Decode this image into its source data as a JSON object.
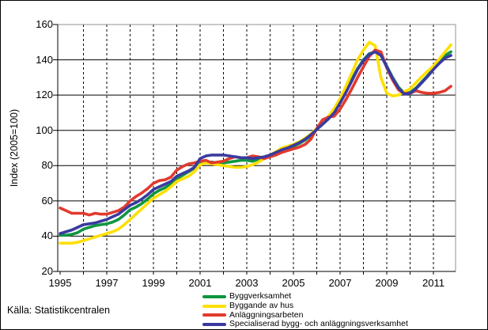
{
  "figure": {
    "source_text": "Källa: Statistikcentralen"
  },
  "chart_data": {
    "type": "line",
    "title": "",
    "xlabel": "",
    "ylabel": "Index (2005=100)",
    "ylim": [
      20,
      160
    ],
    "xlim": [
      1995,
      2012
    ],
    "y_ticks": [
      20,
      40,
      60,
      80,
      100,
      120,
      140,
      160
    ],
    "x_tick_label_years": [
      1995,
      1997,
      1999,
      2001,
      2003,
      2005,
      2007,
      2009,
      2011
    ],
    "x_tick_labels": [
      "1995",
      "1997",
      "1999",
      "2001",
      "2003",
      "2005",
      "2007",
      "2009",
      "2011"
    ],
    "grid": {
      "horizontal": "solid",
      "vertical": "dashed, one line per year"
    },
    "legend_position": "bottom",
    "x_start": 1995.0,
    "x_step_years": 0.25,
    "x": [
      1995.0,
      1995.25,
      1995.5,
      1995.75,
      1996.0,
      1996.25,
      1996.5,
      1996.75,
      1997.0,
      1997.25,
      1997.5,
      1997.75,
      1998.0,
      1998.25,
      1998.5,
      1998.75,
      1999.0,
      1999.25,
      1999.5,
      1999.75,
      2000.0,
      2000.25,
      2000.5,
      2000.75,
      2001.0,
      2001.25,
      2001.5,
      2001.75,
      2002.0,
      2002.25,
      2002.5,
      2002.75,
      2003.0,
      2003.25,
      2003.5,
      2003.75,
      2004.0,
      2004.25,
      2004.5,
      2004.75,
      2005.0,
      2005.25,
      2005.5,
      2005.75,
      2006.0,
      2006.25,
      2006.5,
      2006.75,
      2007.0,
      2007.25,
      2007.5,
      2007.75,
      2008.0,
      2008.25,
      2008.5,
      2008.75,
      2009.0,
      2009.25,
      2009.5,
      2009.75,
      2010.0,
      2010.25,
      2010.5,
      2010.75,
      2011.0,
      2011.25,
      2011.5,
      2011.75
    ],
    "series": [
      {
        "name": "Byggverksamhet",
        "color": "#0f9640",
        "values": [
          40.5,
          40.5,
          41,
          42,
          44,
          45,
          46,
          46.5,
          47,
          48,
          49.5,
          52,
          55,
          56.5,
          58.5,
          61,
          64,
          66,
          67.5,
          69.5,
          72.5,
          74.5,
          76.5,
          78.5,
          81,
          82,
          82,
          81.5,
          81.5,
          82,
          82.5,
          83,
          83,
          82.5,
          83.5,
          84.5,
          85.5,
          87,
          88.5,
          89.5,
          91,
          92.5,
          94.5,
          97,
          100.5,
          103.5,
          106.5,
          110.5,
          116,
          122.5,
          129,
          135,
          140,
          143.5,
          144.5,
          142.5,
          136.5,
          130,
          124.5,
          121,
          121.5,
          124,
          127.5,
          131,
          135,
          139,
          142.5,
          144.5
        ]
      },
      {
        "name": "Byggande av hus",
        "color": "#ffdf00",
        "values": [
          36,
          36,
          36,
          36.5,
          37.5,
          38.5,
          39.5,
          40.5,
          41.5,
          42.5,
          44,
          46.5,
          49.5,
          52.5,
          55.5,
          58.5,
          61.5,
          63.5,
          65.5,
          68,
          71,
          72.5,
          74,
          76.5,
          80.5,
          81.5,
          81,
          80.5,
          80,
          79.5,
          79,
          79,
          79.5,
          80.5,
          82,
          84,
          86,
          88,
          90,
          91,
          92,
          93.5,
          95.5,
          98,
          101,
          104.5,
          108,
          112.5,
          118,
          125,
          132.5,
          140,
          145.5,
          150,
          148,
          130,
          121,
          119.5,
          120,
          122,
          123.5,
          127,
          130.5,
          133.5,
          136.5,
          140.5,
          144.5,
          148.5
        ]
      },
      {
        "name": "Anläggningsarbeten",
        "color": "#e23a2e",
        "values": [
          56,
          54.5,
          53,
          53,
          53,
          52,
          53,
          52.5,
          52.5,
          53.5,
          54.5,
          56.5,
          60,
          62.5,
          64.5,
          67,
          70,
          71.5,
          72,
          73.5,
          77.5,
          79.5,
          81,
          81.5,
          82.5,
          83,
          81.5,
          82,
          82.5,
          84,
          85,
          84.5,
          84.5,
          85.5,
          85,
          84,
          85,
          86,
          87.5,
          88.5,
          89.5,
          90.5,
          92,
          95,
          101,
          106,
          107.5,
          108,
          112,
          117.5,
          123.5,
          130,
          136,
          142,
          145.5,
          144.5,
          135.5,
          128.5,
          123,
          121,
          121,
          122.5,
          121.5,
          121,
          121,
          121.5,
          122.5,
          125
        ]
      },
      {
        "name": "Specialiserad bygg- och anläggningsverksamhet",
        "color": "#3a3aa0",
        "values": [
          41.5,
          42.5,
          43.5,
          45,
          46.5,
          47,
          47.5,
          48.5,
          49.5,
          51,
          52.5,
          55,
          57.5,
          59,
          61,
          63.5,
          66.5,
          68,
          69.5,
          71,
          74,
          75.5,
          77,
          79,
          84,
          85.5,
          86,
          86,
          86,
          85.5,
          85,
          84.5,
          84.5,
          84,
          84.5,
          85,
          86,
          87.5,
          89,
          90,
          91.5,
          93,
          95,
          97.5,
          100.5,
          103.5,
          106.5,
          110,
          115.5,
          121.5,
          128,
          134.5,
          139.5,
          143,
          144.5,
          142.5,
          136,
          129.5,
          124,
          120.5,
          121,
          123.5,
          127,
          130.5,
          134.5,
          138,
          141,
          142.5
        ]
      }
    ]
  }
}
